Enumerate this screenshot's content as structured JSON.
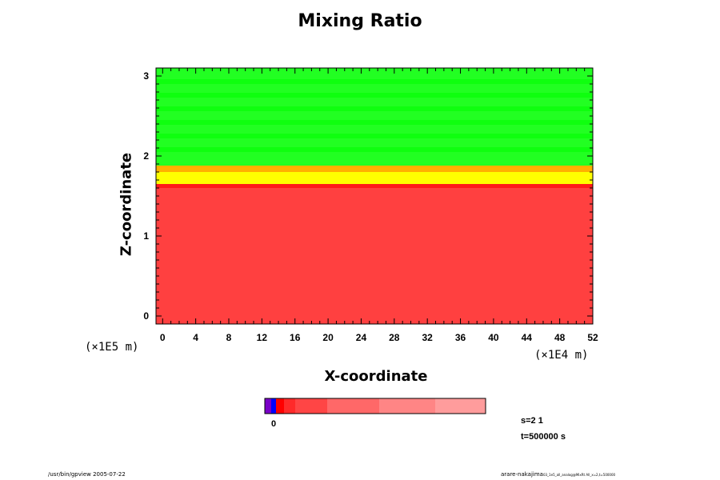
{
  "chart_data": {
    "type": "heatmap",
    "title": "Mixing Ratio",
    "xlabel": "X-coordinate",
    "ylabel": "Z-coordinate",
    "x_unit": "(×1E4 m)",
    "y_unit": "(×1E5 m)",
    "xlim": [
      -0.8,
      52
    ],
    "ylim": [
      -0.1,
      3.1
    ],
    "x_ticks": [
      0,
      4,
      8,
      12,
      16,
      20,
      24,
      28,
      32,
      36,
      40,
      44,
      48,
      52
    ],
    "y_ticks": [
      0,
      1,
      2,
      3
    ],
    "layers": [
      {
        "z_from": -0.1,
        "z_to": 1.6,
        "level": "red",
        "color": "#ff4040"
      },
      {
        "z_from": 1.6,
        "z_to": 1.65,
        "level": "bright-red",
        "color": "#ff1a1a"
      },
      {
        "z_from": 1.65,
        "z_to": 1.8,
        "level": "yellow",
        "color": "#ffff00"
      },
      {
        "z_from": 1.8,
        "z_to": 1.88,
        "level": "orange",
        "color": "#ffb000"
      },
      {
        "z_from": 1.88,
        "z_to": 3.1,
        "level": "green",
        "color": "#22ff22"
      }
    ],
    "colorbar": {
      "colors": [
        "#7a00c8",
        "#0000ff",
        "#ff0000",
        "#ff2a2a",
        "#ff4545",
        "#ff6868",
        "#ff8585",
        "#ff9c9c"
      ],
      "label": "0"
    }
  },
  "annotations": {
    "step": "s=2 1",
    "time": "t=500000 s"
  },
  "footer": {
    "left": "/usr/bin/gpview 2005-07-22",
    "right": "arare-nakajima",
    "right_small": "03_1e5_all_analog@MixRt All_x=2,t=500000"
  }
}
